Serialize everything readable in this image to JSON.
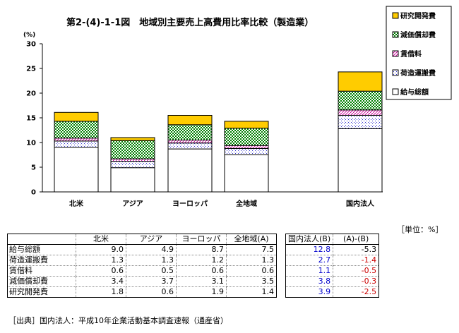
{
  "chart_data": {
    "type": "bar",
    "stacked": true,
    "title": "第2-(4)-1-1図　地域別主要売上高費用比率比較（製造業）",
    "ylabel": "(%)",
    "ylim": [
      0,
      30
    ],
    "yticks": [
      0,
      5,
      10,
      15,
      20,
      25,
      30
    ],
    "categories": [
      "北米",
      "アジア",
      "ヨーロッパ",
      "全地域",
      "国内法人"
    ],
    "series": [
      {
        "name": "給与総額",
        "values": [
          9.0,
          4.9,
          8.7,
          7.5,
          12.8
        ],
        "pattern": "white"
      },
      {
        "name": "荷造運搬費",
        "values": [
          1.3,
          1.3,
          1.2,
          1.3,
          2.7
        ],
        "pattern": "dots"
      },
      {
        "name": "賃借料",
        "values": [
          0.6,
          0.5,
          0.6,
          0.6,
          1.1
        ],
        "pattern": "pink-stripes"
      },
      {
        "name": "減価償却費",
        "values": [
          3.4,
          3.7,
          3.1,
          3.5,
          3.8
        ],
        "pattern": "green-checker"
      },
      {
        "name": "研究開発費",
        "values": [
          1.8,
          0.6,
          1.9,
          1.4,
          3.9
        ],
        "pattern": "yellow"
      }
    ],
    "legend": [
      "研究開発費",
      "減価償却費",
      "賃借料",
      "荷造運搬費",
      "給与総額"
    ],
    "legend_position": "right"
  },
  "table": {
    "unit_note": "［単位：%］",
    "headers": [
      "北米",
      "アジア",
      "ヨーロッパ",
      "全地域(A)",
      "国内法人(B)",
      "(A)-(B)"
    ],
    "rows": [
      {
        "label": "給与総額",
        "values": [
          "9.0",
          "4.9",
          "8.7",
          "7.5"
        ],
        "domestic": "12.8",
        "diff": "-5.3"
      },
      {
        "label": "荷造運搬費",
        "values": [
          "1.3",
          "1.3",
          "1.2",
          "1.3"
        ],
        "domestic": "2.7",
        "diff": "-1.4"
      },
      {
        "label": "賃借料",
        "values": [
          "0.6",
          "0.5",
          "0.6",
          "0.6"
        ],
        "domestic": "1.1",
        "diff": "-0.5"
      },
      {
        "label": "減価償却費",
        "values": [
          "3.4",
          "3.7",
          "3.1",
          "3.5"
        ],
        "domestic": "3.8",
        "diff": "-0.3"
      },
      {
        "label": "研究開発費",
        "values": [
          "1.8",
          "0.6",
          "1.9",
          "1.4"
        ],
        "domestic": "3.9",
        "diff": "-2.5"
      }
    ]
  },
  "source": "［出典］国内法人：平成10年企業活動基本調査速報（通産省）",
  "colors": {
    "yellow": "#ffcc00",
    "green": "#008000",
    "pink": "#cc0099",
    "dot_blue": "#3333cc",
    "blue_text": "#0000cc",
    "red_text": "#cc0000"
  }
}
